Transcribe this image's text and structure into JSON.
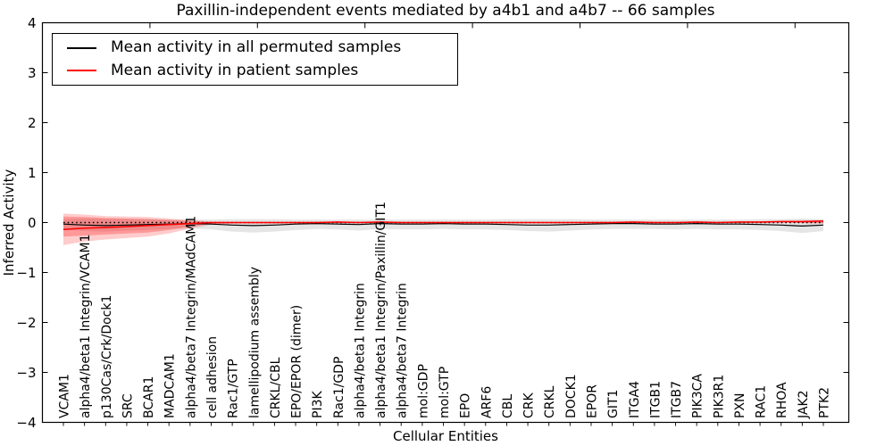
{
  "chart_data": {
    "type": "line",
    "title": "Paxillin-independent events mediated by a4b1 and a4b7 -- 66 samples",
    "xlabel": "Cellular Entities",
    "ylabel": "Inferred Activity",
    "ylim": [
      -4,
      4
    ],
    "yticks": [
      -4,
      -3,
      -2,
      -1,
      0,
      1,
      2,
      3,
      4
    ],
    "grid": false,
    "top_axis": {
      "range": [
        0,
        1.5
      ],
      "tick_step": 0.2,
      "labels_shown": false
    },
    "legend": {
      "position": "upper left",
      "entries": [
        {
          "label": "Mean activity in all permuted samples",
          "color": "#000000"
        },
        {
          "label": "Mean activity in patient samples",
          "color": "#ff0000"
        }
      ]
    },
    "reference_line": {
      "y": 0,
      "style": "dotted",
      "color": "#000000"
    },
    "categories": [
      "VCAM1",
      "alpha4/beta1 Integrin/VCAM1",
      "p130Cas/Crk/Dock1",
      "SRC",
      "BCAR1",
      "MADCAM1",
      "alpha4/beta7 Integrin/MAdCAM1",
      "cell adhesion",
      "Rac1/GTP",
      "lamellipodium assembly",
      "CRKL/CBL",
      "EPO/EPOR (dimer)",
      "PI3K",
      "Rac1/GDP",
      "alpha4/beta1 Integrin",
      "alpha4/beta1 Integrin/Paxillin/GIT1",
      "alpha4/beta7 Integrin",
      "mol:GDP",
      "mol:GTP",
      "EPO",
      "ARF6",
      "CBL",
      "CRK",
      "CRKL",
      "DOCK1",
      "EPOR",
      "GIT1",
      "ITGA4",
      "ITGB1",
      "ITGB7",
      "PIK3CA",
      "PIK3R1",
      "PXN",
      "RAC1",
      "RHOA",
      "JAK2",
      "PTK2"
    ],
    "series": [
      {
        "name": "Mean activity in all permuted samples",
        "color": "#000000",
        "values": [
          -0.03,
          -0.05,
          -0.06,
          -0.05,
          -0.04,
          -0.03,
          -0.02,
          -0.03,
          -0.05,
          -0.06,
          -0.05,
          -0.03,
          -0.02,
          -0.03,
          -0.04,
          -0.02,
          -0.03,
          -0.03,
          -0.02,
          -0.03,
          -0.03,
          -0.04,
          -0.05,
          -0.05,
          -0.04,
          -0.03,
          -0.02,
          -0.02,
          -0.03,
          -0.03,
          -0.02,
          -0.03,
          -0.03,
          -0.04,
          -0.05,
          -0.07,
          -0.05
        ]
      },
      {
        "name": "Mean activity in patient samples",
        "color": "#ff0000",
        "values": [
          -0.14,
          -0.11,
          -0.1,
          -0.08,
          -0.06,
          -0.04,
          -0.02,
          0.0,
          0.0,
          0.0,
          0.0,
          0.0,
          0.0,
          0.01,
          0.0,
          0.01,
          0.0,
          0.0,
          0.0,
          0.0,
          0.0,
          0.0,
          0.0,
          0.0,
          0.0,
          0.0,
          0.0,
          0.01,
          0.0,
          0.0,
          0.01,
          0.0,
          0.01,
          0.01,
          0.02,
          0.02,
          0.03
        ]
      }
    ],
    "bands": [
      {
        "name": "permuted-samples-range",
        "color": "rgba(0,0,0,0.10)",
        "upper": [
          0.07,
          0.08,
          0.08,
          0.07,
          0.07,
          0.06,
          0.06,
          0.06,
          0.07,
          0.07,
          0.07,
          0.06,
          0.06,
          0.06,
          0.06,
          0.06,
          0.06,
          0.06,
          0.06,
          0.06,
          0.06,
          0.07,
          0.07,
          0.07,
          0.07,
          0.06,
          0.06,
          0.06,
          0.06,
          0.06,
          0.06,
          0.06,
          0.06,
          0.07,
          0.07,
          0.08,
          0.07
        ],
        "lower": [
          -0.14,
          -0.17,
          -0.18,
          -0.16,
          -0.15,
          -0.13,
          -0.12,
          -0.14,
          -0.18,
          -0.2,
          -0.18,
          -0.15,
          -0.13,
          -0.14,
          -0.16,
          -0.13,
          -0.14,
          -0.14,
          -0.13,
          -0.14,
          -0.14,
          -0.15,
          -0.17,
          -0.18,
          -0.16,
          -0.14,
          -0.13,
          -0.13,
          -0.13,
          -0.14,
          -0.13,
          -0.14,
          -0.14,
          -0.15,
          -0.17,
          -0.21,
          -0.17
        ]
      },
      {
        "name": "patient-samples-range-outer",
        "color": "rgba(255,0,0,0.20)",
        "upper": [
          0.18,
          0.16,
          0.13,
          0.12,
          0.11,
          0.08,
          0.05,
          0.02,
          0.01,
          0.01,
          0.01,
          0.01,
          0.01,
          0.02,
          0.01,
          0.02,
          0.01,
          0.01,
          0.01,
          0.01,
          0.01,
          0.01,
          0.01,
          0.01,
          0.01,
          0.01,
          0.01,
          0.02,
          0.01,
          0.01,
          0.02,
          0.01,
          0.02,
          0.02,
          0.03,
          0.04,
          0.05
        ],
        "lower": [
          -0.45,
          -0.38,
          -0.34,
          -0.31,
          -0.28,
          -0.22,
          -0.12,
          -0.04,
          -0.02,
          -0.02,
          -0.02,
          -0.01,
          -0.01,
          -0.01,
          -0.01,
          -0.01,
          -0.01,
          -0.01,
          -0.01,
          -0.01,
          -0.01,
          -0.01,
          -0.01,
          -0.01,
          -0.01,
          -0.01,
          -0.01,
          -0.01,
          -0.01,
          -0.01,
          -0.01,
          -0.01,
          -0.01,
          -0.01,
          0.0,
          -0.01,
          -0.02
        ]
      },
      {
        "name": "patient-samples-range-inner",
        "color": "rgba(255,0,0,0.25)",
        "upper": [
          0.12,
          0.11,
          0.09,
          0.08,
          0.07,
          0.05,
          0.03,
          0.01,
          0.01,
          0.01,
          0.01,
          0.01,
          0.01,
          0.01,
          0.01,
          0.01,
          0.01,
          0.01,
          0.01,
          0.01,
          0.01,
          0.01,
          0.01,
          0.01,
          0.01,
          0.01,
          0.01,
          0.01,
          0.01,
          0.01,
          0.01,
          0.01,
          0.01,
          0.01,
          0.02,
          0.03,
          0.04
        ],
        "lower": [
          -0.28,
          -0.26,
          -0.24,
          -0.22,
          -0.2,
          -0.15,
          -0.08,
          -0.02,
          -0.01,
          -0.01,
          -0.01,
          -0.01,
          -0.01,
          -0.01,
          -0.01,
          -0.01,
          -0.01,
          -0.01,
          -0.01,
          -0.01,
          -0.01,
          -0.01,
          -0.01,
          -0.01,
          -0.01,
          -0.01,
          -0.01,
          -0.01,
          -0.01,
          -0.01,
          -0.01,
          -0.01,
          -0.01,
          -0.01,
          0.0,
          -0.01,
          -0.01
        ]
      }
    ]
  }
}
